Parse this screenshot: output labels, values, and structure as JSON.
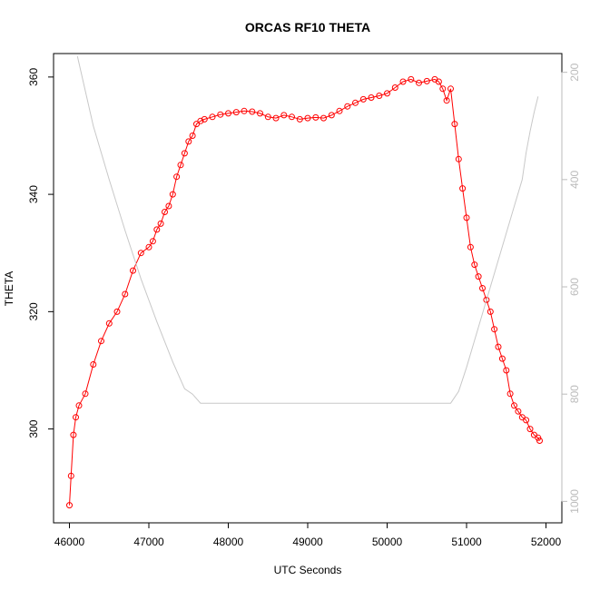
{
  "chart_data": {
    "type": "scatter",
    "title": "ORCAS RF10 THETA",
    "xlabel": "UTC Seconds",
    "ylabel": "THETA",
    "xlim": [
      45800,
      52200
    ],
    "ylim": [
      284,
      364
    ],
    "y2lim": [
      1040,
      165
    ],
    "x_ticks": [
      46000,
      47000,
      48000,
      49000,
      50000,
      51000,
      52000
    ],
    "y_ticks": [
      300,
      320,
      340,
      360
    ],
    "y2_ticks": [
      200,
      400,
      600,
      800,
      1000
    ],
    "grid": false,
    "colors": {
      "theta": "#ff0000",
      "pressure": "#c8c8c8",
      "right_axis": "#bbbbbb"
    },
    "series": [
      {
        "style": "points-with-line",
        "axis": "left",
        "x": [
          46000,
          46020,
          46050,
          46080,
          46120,
          46200,
          46300,
          46400,
          46500,
          46600,
          46700,
          46800,
          46900,
          47000,
          47050,
          47100,
          47150,
          47200,
          47250,
          47300,
          47350,
          47400,
          47450,
          47500,
          47550,
          47600,
          47650,
          47700,
          47800,
          47900,
          48000,
          48100,
          48200,
          48300,
          48400,
          48500,
          48600,
          48700,
          48800,
          48900,
          49000,
          49100,
          49200,
          49300,
          49400,
          49500,
          49600,
          49700,
          49800,
          49900,
          50000,
          50100,
          50200,
          50300,
          50400,
          50500,
          50600,
          50650,
          50700,
          50750,
          50800,
          50850,
          50900,
          50950,
          51000,
          51050,
          51100,
          51150,
          51200,
          51250,
          51300,
          51350,
          51400,
          51450,
          51500,
          51550,
          51600,
          51650,
          51700,
          51750,
          51800,
          51850,
          51900,
          51920
        ],
        "y": [
          287,
          292,
          299,
          302,
          304,
          306,
          311,
          315,
          318,
          320,
          323,
          327,
          330,
          331,
          332,
          334,
          335,
          337,
          338,
          340,
          343,
          345,
          347,
          349,
          350,
          352,
          352.5,
          352.8,
          353.2,
          353.6,
          353.8,
          354,
          354.2,
          354.1,
          353.8,
          353.2,
          353,
          353.5,
          353.2,
          352.8,
          353,
          353.1,
          353,
          353.5,
          354.2,
          355,
          355.6,
          356.2,
          356.5,
          356.8,
          357.2,
          358.2,
          359.2,
          359.6,
          359,
          359.3,
          359.6,
          359.2,
          358,
          356,
          358,
          352,
          346,
          341,
          336,
          331,
          328,
          326,
          324,
          322,
          320,
          317,
          314,
          312,
          310,
          306,
          304,
          303,
          302,
          301.5,
          300,
          299,
          298.5,
          298
        ]
      },
      {
        "style": "line",
        "axis": "right",
        "x": [
          46100,
          46300,
          46500,
          46700,
          46900,
          47100,
          47300,
          47450,
          47550,
          47650,
          48000,
          49000,
          50000,
          50500,
          50800,
          50900,
          51000,
          51200,
          51400,
          51600,
          51700,
          51750,
          51800,
          51850,
          51900
        ],
        "y": [
          170,
          300,
          400,
          495,
          585,
          665,
          740,
          790,
          800,
          817,
          817,
          817,
          817,
          817,
          817,
          795,
          750,
          650,
          550,
          450,
          400,
          350,
          310,
          275,
          245
        ]
      }
    ]
  }
}
